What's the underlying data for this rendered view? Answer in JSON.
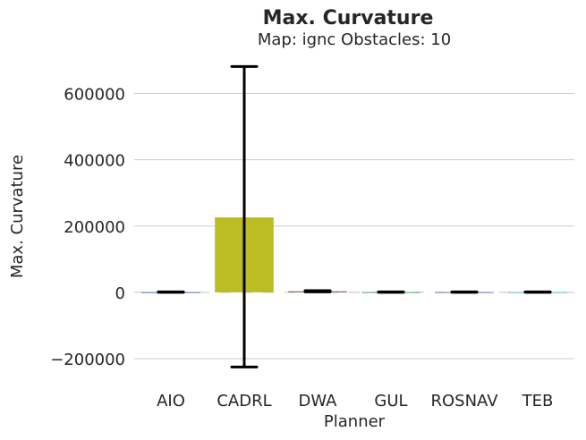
{
  "chart_data": {
    "type": "bar",
    "title": "Max. Curvature",
    "subtitle": "Map: ignc Obstacles: 10",
    "xlabel": "Planner",
    "ylabel": "Max. Curvature",
    "categories": [
      "AIO",
      "CADRL",
      "DWA",
      "GUL",
      "ROSNAV",
      "TEB"
    ],
    "values": [
      800,
      226000,
      3000,
      800,
      800,
      800
    ],
    "error_low": [
      0,
      -225000,
      1500,
      0,
      0,
      0
    ],
    "error_high": [
      1500,
      681000,
      5000,
      1500,
      1500,
      1500
    ],
    "ylim": [
      -270000,
      728000
    ],
    "yticks": [
      -200000,
      0,
      200000,
      400000,
      600000
    ],
    "ytick_labels": [
      "−200000",
      "0",
      "200000",
      "400000",
      "600000"
    ],
    "bar_colors": [
      "#4c72b0",
      "#bcbd22",
      "#8c564b",
      "#55a868",
      "#8172b2",
      "#64b5cd"
    ],
    "grid": true,
    "zero_line_dashed": true
  }
}
